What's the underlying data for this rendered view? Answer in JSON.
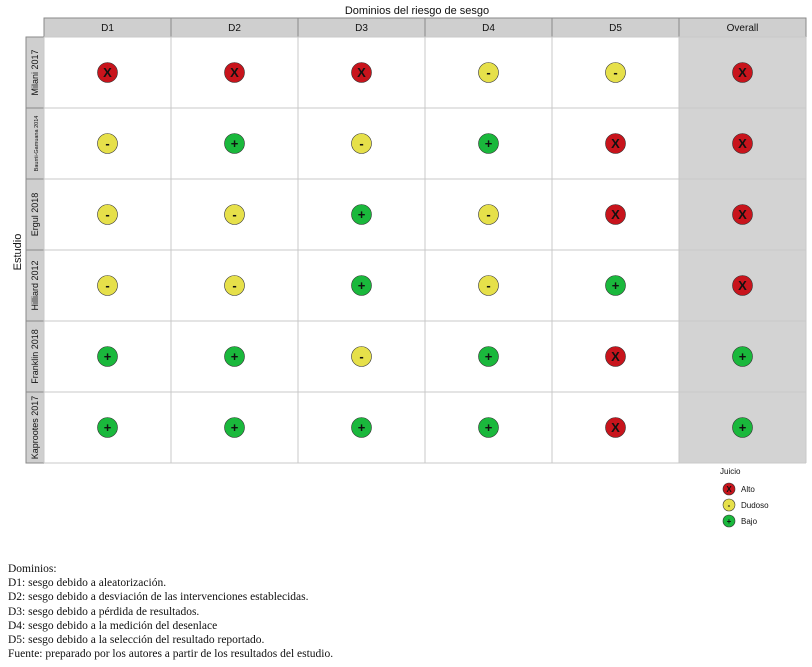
{
  "chart_data": {
    "type": "table",
    "title": "Dominios del riesgo de sesgo",
    "ylabel": "Estudio",
    "columns": [
      "D1",
      "D2",
      "D3",
      "D4",
      "D5",
      "Overall"
    ],
    "rows": [
      {
        "study": "Milani 2017",
        "judgements": [
          "Alto",
          "Alto",
          "Alto",
          "Dudoso",
          "Dudoso",
          "Alto"
        ]
      },
      {
        "study": "Baurrii-Gamuana 2014",
        "judgements": [
          "Dudoso",
          "Bajo",
          "Dudoso",
          "Bajo",
          "Alto",
          "Alto"
        ]
      },
      {
        "study": "Ergul 2018",
        "judgements": [
          "Dudoso",
          "Dudoso",
          "Bajo",
          "Dudoso",
          "Alto",
          "Alto"
        ]
      },
      {
        "study": "Hilliard 2012",
        "judgements": [
          "Dudoso",
          "Dudoso",
          "Bajo",
          "Dudoso",
          "Bajo",
          "Alto"
        ]
      },
      {
        "study": "Franklin 2018",
        "judgements": [
          "Bajo",
          "Bajo",
          "Dudoso",
          "Bajo",
          "Alto",
          "Bajo"
        ]
      },
      {
        "study": "Kaprootes 2017",
        "judgements": [
          "Bajo",
          "Bajo",
          "Bajo",
          "Bajo",
          "Alto",
          "Bajo"
        ]
      }
    ],
    "legend": {
      "title": "Juicio",
      "placement": "bottom-right",
      "items": [
        {
          "label": "Alto",
          "symbol": "X",
          "color": "#c8141c"
        },
        {
          "label": "Dudoso",
          "symbol": "-",
          "color": "#e6e04a"
        },
        {
          "label": "Bajo",
          "symbol": "+",
          "color": "#1ab83c"
        }
      ]
    },
    "colors": {
      "header": "#cfcfcf",
      "overall_background": "#d3d3d3",
      "grid": "#c8c8c8"
    }
  },
  "notes": [
    "Dominios:",
    "D1: sesgo debido a aleatorización.",
    "D2: sesgo debido a desviación de las intervenciones establecidas.",
    "D3: sesgo debido a pérdida de resultados.",
    "D4: sesgo debido a la medición del desenlace",
    "D5: sesgo debido a la selección del resultado reportado.",
    "Fuente: preparado por los autores a partir de los resultados del estudio."
  ]
}
